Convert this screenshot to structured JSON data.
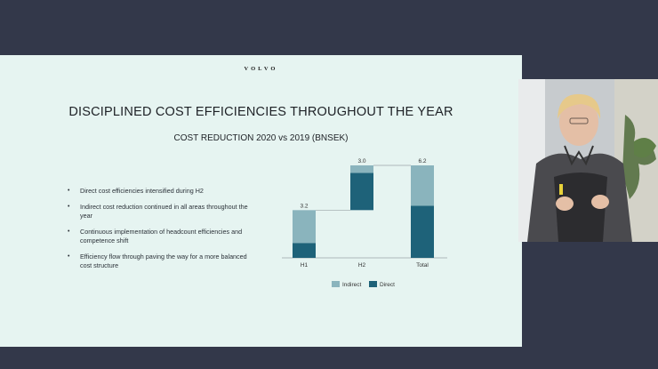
{
  "slide": {
    "brand": "VOLVO",
    "title": "DISCIPLINED COST EFFICIENCIES THROUGHOUT THE YEAR",
    "subtitle": "COST REDUCTION 2020 vs 2019 (BNSEK)",
    "bullets": [
      "Direct cost efficiencies intensified during H2",
      "Indirect cost reduction continued in all areas throughout the year",
      "Continuous implementation of headcount efficiencies and competence shift",
      "Efficiency flow through paving the way for a more balanced cost structure"
    ]
  },
  "colors": {
    "indirect": "#8ab4bd",
    "direct": "#1e6279",
    "slide_bg": "#e6f4f1",
    "outer_bg": "#33384a"
  },
  "chart_data": {
    "type": "bar",
    "stacked": true,
    "waterfall": true,
    "categories": [
      "H1",
      "H2",
      "Total"
    ],
    "series": [
      {
        "name": "Indirect",
        "values": [
          2.2,
          0.5,
          2.7
        ]
      },
      {
        "name": "Direct",
        "values": [
          1.0,
          2.5,
          3.5
        ]
      }
    ],
    "totals": [
      "3.2",
      "3.0",
      "6.2"
    ],
    "legend": [
      "Indirect",
      "Direct"
    ],
    "legend_position": "bottom",
    "ylim": [
      0,
      6.2
    ],
    "grid": false
  }
}
